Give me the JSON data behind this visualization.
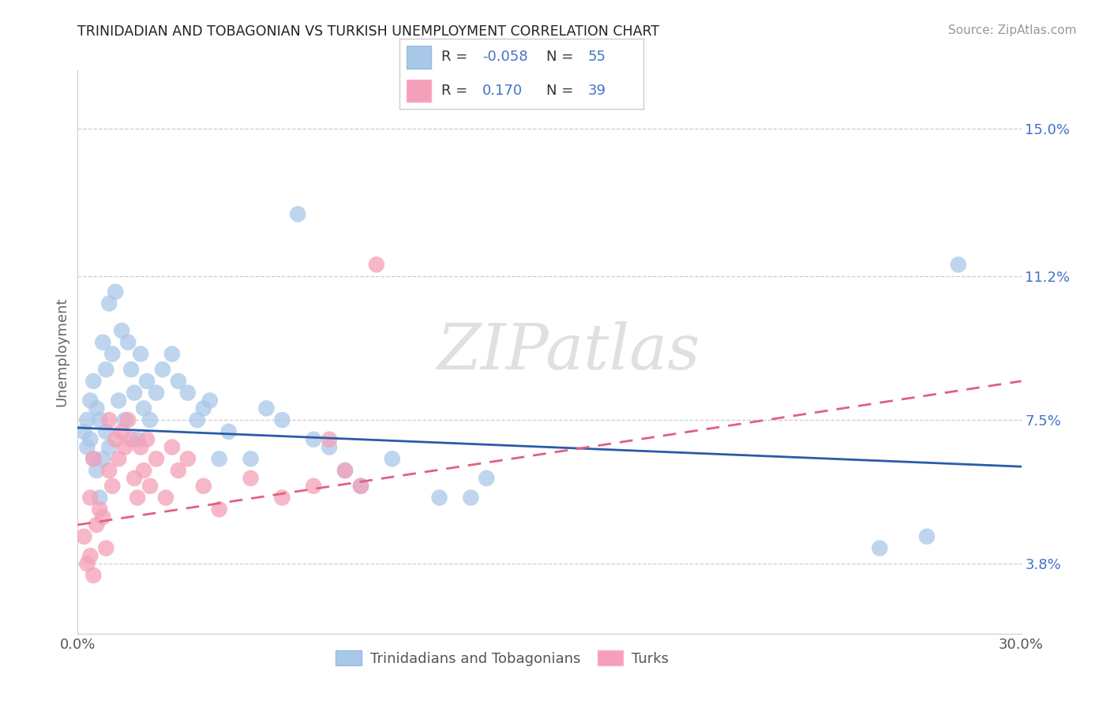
{
  "title": "TRINIDADIAN AND TOBAGONIAN VS TURKISH UNEMPLOYMENT CORRELATION CHART",
  "source": "Source: ZipAtlas.com",
  "ylabel": "Unemployment",
  "xlim": [
    0.0,
    30.0
  ],
  "ylim": [
    2.0,
    16.5
  ],
  "xticks": [
    0.0,
    30.0
  ],
  "xticklabels": [
    "0.0%",
    "30.0%"
  ],
  "yticks_right": [
    3.8,
    7.5,
    11.2,
    15.0
  ],
  "yticklabels_right": [
    "3.8%",
    "7.5%",
    "11.2%",
    "15.0%"
  ],
  "blue_color": "#A8C8E8",
  "pink_color": "#F4A0B8",
  "blue_line_color": "#2B5BA8",
  "pink_line_color": "#E06080",
  "blue_R": -0.058,
  "blue_N": 55,
  "pink_R": 0.17,
  "pink_N": 39,
  "watermark": "ZIPatlas",
  "blue_line_y0": 7.3,
  "blue_line_y30": 6.3,
  "pink_line_y0": 4.8,
  "pink_line_y30": 8.5,
  "blue_points_x": [
    0.2,
    0.3,
    0.3,
    0.4,
    0.4,
    0.5,
    0.5,
    0.6,
    0.6,
    0.7,
    0.7,
    0.8,
    0.8,
    0.9,
    0.9,
    1.0,
    1.0,
    1.1,
    1.2,
    1.3,
    1.4,
    1.5,
    1.6,
    1.7,
    1.8,
    1.9,
    2.0,
    2.1,
    2.2,
    2.3,
    2.5,
    2.7,
    3.0,
    3.2,
    3.5,
    3.8,
    4.0,
    4.2,
    4.5,
    4.8,
    5.5,
    6.0,
    6.5,
    7.0,
    7.5,
    8.0,
    8.5,
    9.0,
    10.0,
    11.5,
    12.5,
    25.5,
    27.0,
    28.0,
    13.0
  ],
  "blue_points_y": [
    7.2,
    6.8,
    7.5,
    7.0,
    8.0,
    6.5,
    8.5,
    7.8,
    6.2,
    7.5,
    5.5,
    9.5,
    6.5,
    7.2,
    8.8,
    10.5,
    6.8,
    9.2,
    10.8,
    8.0,
    9.8,
    7.5,
    9.5,
    8.8,
    8.2,
    7.0,
    9.2,
    7.8,
    8.5,
    7.5,
    8.2,
    8.8,
    9.2,
    8.5,
    8.2,
    7.5,
    7.8,
    8.0,
    6.5,
    7.2,
    6.5,
    7.8,
    7.5,
    12.8,
    7.0,
    6.8,
    6.2,
    5.8,
    6.5,
    5.5,
    5.5,
    4.2,
    4.5,
    11.5,
    6.0
  ],
  "pink_points_x": [
    0.2,
    0.3,
    0.4,
    0.4,
    0.5,
    0.5,
    0.6,
    0.7,
    0.8,
    0.9,
    1.0,
    1.0,
    1.1,
    1.2,
    1.3,
    1.4,
    1.5,
    1.6,
    1.7,
    1.8,
    1.9,
    2.0,
    2.1,
    2.2,
    2.3,
    2.5,
    2.8,
    3.0,
    3.2,
    3.5,
    4.0,
    4.5,
    5.5,
    6.5,
    7.5,
    8.5,
    9.5,
    8.0,
    9.0
  ],
  "pink_points_y": [
    4.5,
    3.8,
    4.0,
    5.5,
    3.5,
    6.5,
    4.8,
    5.2,
    5.0,
    4.2,
    6.2,
    7.5,
    5.8,
    7.0,
    6.5,
    7.2,
    6.8,
    7.5,
    7.0,
    6.0,
    5.5,
    6.8,
    6.2,
    7.0,
    5.8,
    6.5,
    5.5,
    6.8,
    6.2,
    6.5,
    5.8,
    5.2,
    6.0,
    5.5,
    5.8,
    6.2,
    11.5,
    7.0,
    5.8
  ]
}
